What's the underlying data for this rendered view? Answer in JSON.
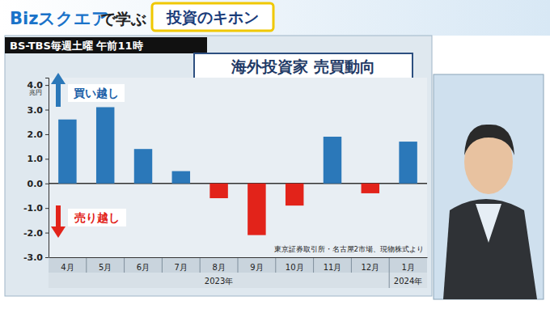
{
  "header": {
    "brand": "Bizスクエア",
    "tagline": "で学ぶ",
    "topic": "投資のキホン",
    "schedule": "BS-TBS毎週土曜 午前11時"
  },
  "chart_data": {
    "type": "bar",
    "title": "海外投資家 売買動向",
    "y_label": "兆円",
    "categories": [
      "4月",
      "5月",
      "6月",
      "7月",
      "8月",
      "9月",
      "10月",
      "11月",
      "12月",
      "1月"
    ],
    "groups": [
      "2023年",
      "2023年",
      "2023年",
      "2023年",
      "2023年",
      "2023年",
      "2023年",
      "2023年",
      "2023年",
      "2024年"
    ],
    "values": [
      2.6,
      3.1,
      1.4,
      0.5,
      -0.6,
      -2.1,
      -0.9,
      1.9,
      -0.4,
      1.7
    ],
    "colors": [
      "#2b78b9",
      "#2b78b9",
      "#2b78b9",
      "#2b78b9",
      "#e2231a",
      "#e2231a",
      "#e2231a",
      "#2b78b9",
      "#e2231a",
      "#2b78b9"
    ],
    "ylim": [
      -3.0,
      4.3
    ],
    "yticks": [
      {
        "value": 4,
        "label": "4.0"
      },
      {
        "value": 3,
        "label": "3.0"
      },
      {
        "value": 2,
        "label": "2.0"
      },
      {
        "value": 1,
        "label": "1.0"
      },
      {
        "value": 0,
        "label": "0.0"
      },
      {
        "value": -1,
        "label": "-1.0"
      },
      {
        "value": -2,
        "label": "-2.0"
      },
      {
        "value": -3,
        "label": "-3.0"
      }
    ],
    "grid": false,
    "annotations": [
      "買い越し",
      "売り越し"
    ],
    "source": "東京証券取引所・名古屋2市場、現物株式より"
  }
}
